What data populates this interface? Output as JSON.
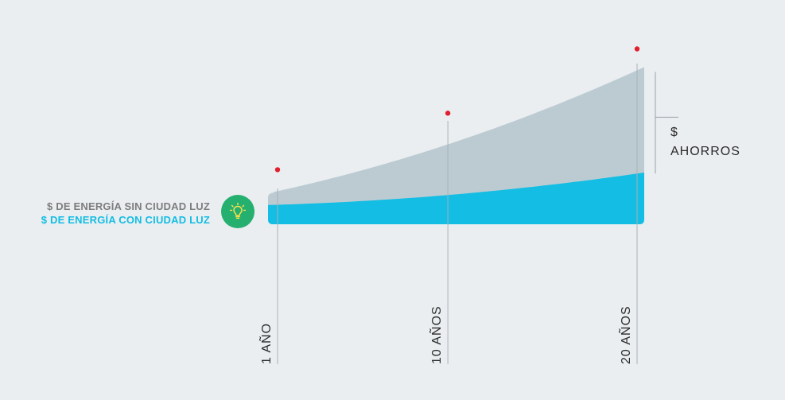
{
  "colors": {
    "background": "#eaeef1",
    "without_area": "#bccbd2",
    "with_area": "#13bde3",
    "legend_without_text": "#7d7d7d",
    "legend_with_text": "#13bde3",
    "marker": "#e0202e",
    "bulb_circle": "#25b06f",
    "bulb_glyph": "#ffe14d"
  },
  "legend": {
    "without": "$ DE ENERGÍA SIN CIUDAD LUZ",
    "with": "$ DE ENERGÍA CON CIUDAD LUZ",
    "icon": "lightbulb-icon"
  },
  "savings": {
    "line1": "$",
    "line2": "AHORROS"
  },
  "chart_data": {
    "type": "area",
    "categories": [
      "1 AÑO",
      "10 AÑOS",
      "20 AÑOS"
    ],
    "x": [
      1,
      10,
      20
    ],
    "series": [
      {
        "name": "$ DE ENERGÍA SIN CIUDAD LUZ",
        "values": [
          1.7,
          4.1,
          7.9
        ]
      },
      {
        "name": "$ DE ENERGÍA CON CIUDAD LUZ",
        "values": [
          1.0,
          1.5,
          2.6
        ]
      }
    ],
    "markers_y": [
      2.8,
      5.7,
      9.0
    ],
    "ylim": [
      0,
      10
    ],
    "grid": false,
    "legend_position": "left"
  }
}
